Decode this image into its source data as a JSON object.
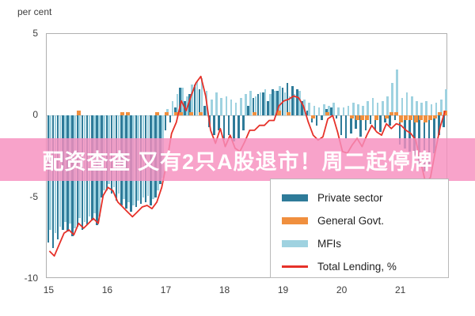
{
  "header": {
    "unit_label": "per cent"
  },
  "overlay_banner": {
    "text": "配资查查 又有2只A股退市！周二起停牌",
    "bg_color": "#f78fbe",
    "text_color": "#ffffff"
  },
  "chart_data": {
    "type": "bar",
    "title": "",
    "ylabel": "per cent",
    "ylim": [
      -10,
      5
    ],
    "yticks": [
      "5",
      "0",
      "-5",
      "-10"
    ],
    "ytick_values": [
      5,
      0,
      -5,
      -10
    ],
    "xticklabels": [
      "15",
      "16",
      "17",
      "18",
      "19",
      "20",
      "21"
    ],
    "grid": "off",
    "legend_position": "inside-bottom-right",
    "frame_color": "#b0b0b0",
    "categories": [
      "2015-01",
      "2015-02",
      "2015-03",
      "2015-04",
      "2015-05",
      "2015-06",
      "2015-07",
      "2015-08",
      "2015-09",
      "2015-10",
      "2015-11",
      "2015-12",
      "2016-01",
      "2016-02",
      "2016-03",
      "2016-04",
      "2016-05",
      "2016-06",
      "2016-07",
      "2016-08",
      "2016-09",
      "2016-10",
      "2016-11",
      "2016-12",
      "2017-01",
      "2017-02",
      "2017-03",
      "2017-04",
      "2017-05",
      "2017-06",
      "2017-07",
      "2017-08",
      "2017-09",
      "2017-10",
      "2017-11",
      "2017-12",
      "2018-01",
      "2018-02",
      "2018-03",
      "2018-04",
      "2018-05",
      "2018-06",
      "2018-07",
      "2018-08",
      "2018-09",
      "2018-10",
      "2018-11",
      "2018-12",
      "2019-01",
      "2019-02",
      "2019-03",
      "2019-04",
      "2019-05",
      "2019-06",
      "2019-07",
      "2019-08",
      "2019-09",
      "2019-10",
      "2019-11",
      "2019-12",
      "2020-01",
      "2020-02",
      "2020-03",
      "2020-04",
      "2020-05",
      "2020-06",
      "2020-07",
      "2020-08",
      "2020-09",
      "2020-10",
      "2020-11",
      "2020-12",
      "2021-01",
      "2021-02",
      "2021-03",
      "2021-04",
      "2021-05",
      "2021-06",
      "2021-07",
      "2021-08",
      "2021-09",
      "2021-10"
    ],
    "series": [
      {
        "name": "Private sector",
        "type": "bar",
        "color": "#2e7b99",
        "values": [
          -7.8,
          -8.1,
          -7.6,
          -7.0,
          -7.1,
          -7.4,
          -6.8,
          -7.0,
          -6.7,
          -6.4,
          -6.7,
          -5.0,
          -4.6,
          -4.8,
          -5.2,
          -5.5,
          -5.7,
          -5.9,
          -5.6,
          -5.4,
          -5.3,
          -5.5,
          -5.0,
          -4.2,
          -0.9,
          -0.4,
          0.5,
          1.7,
          0.9,
          1.3,
          1.9,
          1.6,
          0.6,
          -0.7,
          -1.2,
          -0.9,
          -1.5,
          -1.2,
          -1.6,
          -1.4,
          -0.9,
          0.6,
          1.1,
          1.3,
          1.4,
          0.9,
          1.6,
          1.5,
          1.7,
          2.0,
          1.8,
          1.6,
          0.9,
          0.3,
          -0.4,
          -0.6,
          -0.3,
          0.4,
          0.5,
          -0.2,
          -1.2,
          -1.4,
          -1.1,
          -0.8,
          -1.3,
          -0.9,
          -0.5,
          -0.9,
          -1.0,
          -0.4,
          -0.6,
          -0.3,
          -1.8,
          -2.0,
          -2.2,
          -2.4,
          -3.0,
          -3.4,
          -3.1,
          -2.3,
          -1.2,
          -0.7
        ]
      },
      {
        "name": "General Govt.",
        "type": "bar",
        "color": "#f08f3e",
        "values": [
          0,
          0,
          0,
          0,
          0,
          0,
          0.3,
          0,
          0,
          0,
          0,
          0,
          0,
          0,
          0,
          0.2,
          0.2,
          0,
          0,
          0,
          0,
          0,
          0.2,
          0,
          0.2,
          0,
          0.2,
          0.2,
          0,
          0.2,
          0,
          0.2,
          0,
          0,
          0,
          0,
          0,
          0,
          0,
          0,
          0,
          0,
          0.2,
          0,
          0,
          0,
          0,
          0.3,
          0,
          0.2,
          0,
          0,
          0,
          0,
          -0.2,
          0,
          0,
          0.2,
          0,
          0,
          0,
          0,
          -0.2,
          -0.3,
          -0.3,
          -0.3,
          0,
          -0.3,
          0,
          -0.2,
          0.2,
          0.2,
          -0.4,
          -0.3,
          -0.3,
          -0.4,
          -0.3,
          -0.4,
          -0.3,
          -0.2,
          0.2,
          0.3
        ]
      },
      {
        "name": "MFIs",
        "type": "bar",
        "color": "#9fd2e0",
        "values": [
          -7.0,
          -7.2,
          -6.8,
          -6.5,
          -6.6,
          -6.9,
          -6.3,
          -6.5,
          -6.2,
          -6.0,
          -6.2,
          -4.6,
          -4.2,
          -4.4,
          -4.8,
          -5.1,
          -5.3,
          -5.5,
          -5.2,
          -5.0,
          -4.9,
          -5.1,
          -4.6,
          -3.8,
          0.4,
          0.9,
          1.3,
          1.7,
          1.2,
          1.9,
          2.1,
          2.3,
          1.5,
          1.0,
          1.4,
          1.1,
          1.2,
          1.0,
          0.8,
          1.1,
          1.3,
          1.5,
          1.2,
          1.4,
          1.6,
          1.3,
          1.5,
          1.8,
          1.4,
          1.2,
          1.3,
          1.5,
          1.0,
          0.8,
          0.6,
          0.5,
          0.7,
          0.6,
          0.8,
          0.5,
          0.5,
          0.6,
          0.8,
          0.7,
          0.6,
          0.9,
          1.1,
          0.8,
          0.9,
          1.2,
          2.0,
          2.8,
          1.1,
          1.4,
          1.2,
          0.9,
          0.8,
          0.9,
          0.7,
          0.8,
          1.0,
          1.6
        ]
      },
      {
        "name": "Total Lending, %",
        "type": "line",
        "color": "#e63129",
        "values": [
          -8.3,
          -8.6,
          -7.9,
          -7.2,
          -7.0,
          -7.3,
          -6.6,
          -6.9,
          -6.6,
          -6.3,
          -6.6,
          -4.9,
          -4.4,
          -4.6,
          -5.3,
          -5.6,
          -5.9,
          -6.2,
          -5.9,
          -5.6,
          -5.5,
          -5.7,
          -5.3,
          -4.4,
          -2.9,
          -1.1,
          -0.4,
          0.9,
          0.3,
          1.2,
          2.0,
          2.4,
          1.2,
          -0.9,
          -1.7,
          -0.8,
          -1.9,
          -1.2,
          -2.0,
          -2.2,
          -1.6,
          -0.9,
          -0.9,
          -0.6,
          -0.6,
          -0.3,
          -0.3,
          0.6,
          0.9,
          1.0,
          1.2,
          1.1,
          0.6,
          -0.4,
          -1.2,
          -1.5,
          -1.3,
          -0.2,
          0.0,
          -1.0,
          -2.2,
          -2.3,
          -1.8,
          -1.4,
          -1.9,
          -1.2,
          -0.6,
          -1.0,
          -1.2,
          -0.5,
          -0.8,
          -0.5,
          -0.6,
          -0.9,
          -1.1,
          -1.5,
          -2.8,
          -4.1,
          -3.8,
          -2.2,
          -0.7,
          0.3
        ]
      }
    ]
  }
}
